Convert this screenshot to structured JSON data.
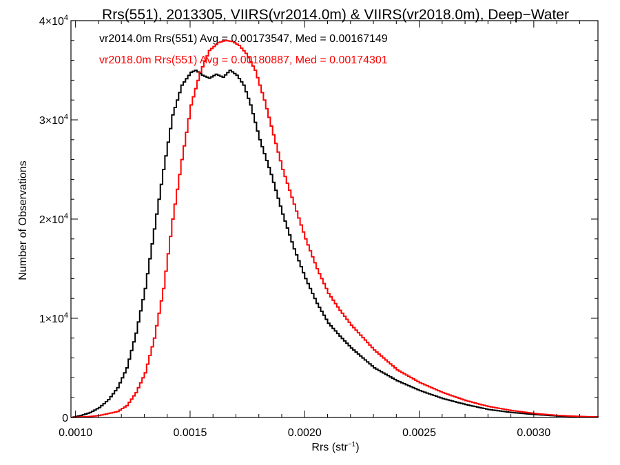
{
  "chart_data": {
    "type": "histogram-step",
    "title": "Rrs(551), 2013305, VIIRS(vr2014.0m) & VIIRS(vr2018.0m), Deep−Water",
    "xlabel_main": "Rrs (str",
    "xlabel_sup": "−1",
    "xlabel_end": ")",
    "ylabel": "Number of Observations",
    "xlim": [
      0.00098,
      0.00328
    ],
    "ylim": [
      0,
      40000
    ],
    "x_ticks": [
      {
        "value": 0.001,
        "label": "0.0010"
      },
      {
        "value": 0.0015,
        "label": "0.0015"
      },
      {
        "value": 0.002,
        "label": "0.0020"
      },
      {
        "value": 0.0025,
        "label": "0.0025"
      },
      {
        "value": 0.003,
        "label": "0.0030"
      }
    ],
    "y_ticks": [
      {
        "value": 0,
        "mantissa": "0",
        "exponent": ""
      },
      {
        "value": 10000,
        "mantissa": "1×10",
        "exponent": "4"
      },
      {
        "value": 20000,
        "mantissa": "2×10",
        "exponent": "4"
      },
      {
        "value": 30000,
        "mantissa": "3×10",
        "exponent": "4"
      },
      {
        "value": 40000,
        "mantissa": "4×10",
        "exponent": "4"
      }
    ],
    "series": [
      {
        "name": "vr2014.0m",
        "color": "#000000",
        "annotation": "vr2014.0m Rrs(551) Avg = 0.00173547, Med = 0.00167149",
        "points": [
          [
            0.00098,
            0
          ],
          [
            0.00102,
            200
          ],
          [
            0.00106,
            500
          ],
          [
            0.0011,
            1000
          ],
          [
            0.00114,
            1800
          ],
          [
            0.00118,
            3000
          ],
          [
            0.00122,
            5000
          ],
          [
            0.00126,
            8500
          ],
          [
            0.0013,
            13000
          ],
          [
            0.00134,
            19000
          ],
          [
            0.00138,
            25000
          ],
          [
            0.00142,
            30500
          ],
          [
            0.00146,
            33500
          ],
          [
            0.0015,
            34800
          ],
          [
            0.00152,
            35000
          ],
          [
            0.00155,
            34500
          ],
          [
            0.00158,
            34200
          ],
          [
            0.00161,
            34600
          ],
          [
            0.00164,
            34300
          ],
          [
            0.00167,
            35000
          ],
          [
            0.0017,
            34500
          ],
          [
            0.00173,
            33500
          ],
          [
            0.00176,
            31500
          ],
          [
            0.0018,
            28000
          ],
          [
            0.00185,
            24500
          ],
          [
            0.0019,
            20500
          ],
          [
            0.00195,
            17000
          ],
          [
            0.002,
            14000
          ],
          [
            0.00205,
            11500
          ],
          [
            0.0021,
            9500
          ],
          [
            0.00215,
            8200
          ],
          [
            0.0022,
            7000
          ],
          [
            0.0023,
            5000
          ],
          [
            0.0024,
            3700
          ],
          [
            0.0025,
            2700
          ],
          [
            0.0026,
            1900
          ],
          [
            0.0027,
            1300
          ],
          [
            0.0028,
            800
          ],
          [
            0.0029,
            500
          ],
          [
            0.003,
            300
          ],
          [
            0.0031,
            150
          ],
          [
            0.0032,
            80
          ],
          [
            0.00328,
            50
          ]
        ]
      },
      {
        "name": "vr2018.0m",
        "color": "#ff0000",
        "annotation": "vr2018.0m Rrs(551) Avg = 0.00180887, Med = 0.00174301",
        "points": [
          [
            0.00098,
            0
          ],
          [
            0.00106,
            100
          ],
          [
            0.0011,
            200
          ],
          [
            0.00114,
            400
          ],
          [
            0.00118,
            600
          ],
          [
            0.00122,
            1200
          ],
          [
            0.00126,
            2500
          ],
          [
            0.0013,
            4500
          ],
          [
            0.00134,
            8000
          ],
          [
            0.00138,
            13000
          ],
          [
            0.00142,
            20000
          ],
          [
            0.00146,
            26000
          ],
          [
            0.0015,
            31500
          ],
          [
            0.00154,
            34800
          ],
          [
            0.00158,
            37000
          ],
          [
            0.00162,
            37800
          ],
          [
            0.00165,
            38000
          ],
          [
            0.00168,
            37900
          ],
          [
            0.00171,
            37500
          ],
          [
            0.00174,
            36700
          ],
          [
            0.00178,
            35000
          ],
          [
            0.00182,
            32000
          ],
          [
            0.00186,
            28500
          ],
          [
            0.0019,
            25000
          ],
          [
            0.00195,
            21500
          ],
          [
            0.002,
            18000
          ],
          [
            0.00205,
            15000
          ],
          [
            0.0021,
            12500
          ],
          [
            0.00215,
            10800
          ],
          [
            0.0022,
            9300
          ],
          [
            0.0023,
            6800
          ],
          [
            0.0024,
            4800
          ],
          [
            0.0025,
            3500
          ],
          [
            0.0026,
            2500
          ],
          [
            0.0027,
            1700
          ],
          [
            0.0028,
            1100
          ],
          [
            0.0029,
            700
          ],
          [
            0.003,
            400
          ],
          [
            0.0031,
            200
          ],
          [
            0.0032,
            100
          ],
          [
            0.00328,
            50
          ]
        ]
      }
    ]
  }
}
